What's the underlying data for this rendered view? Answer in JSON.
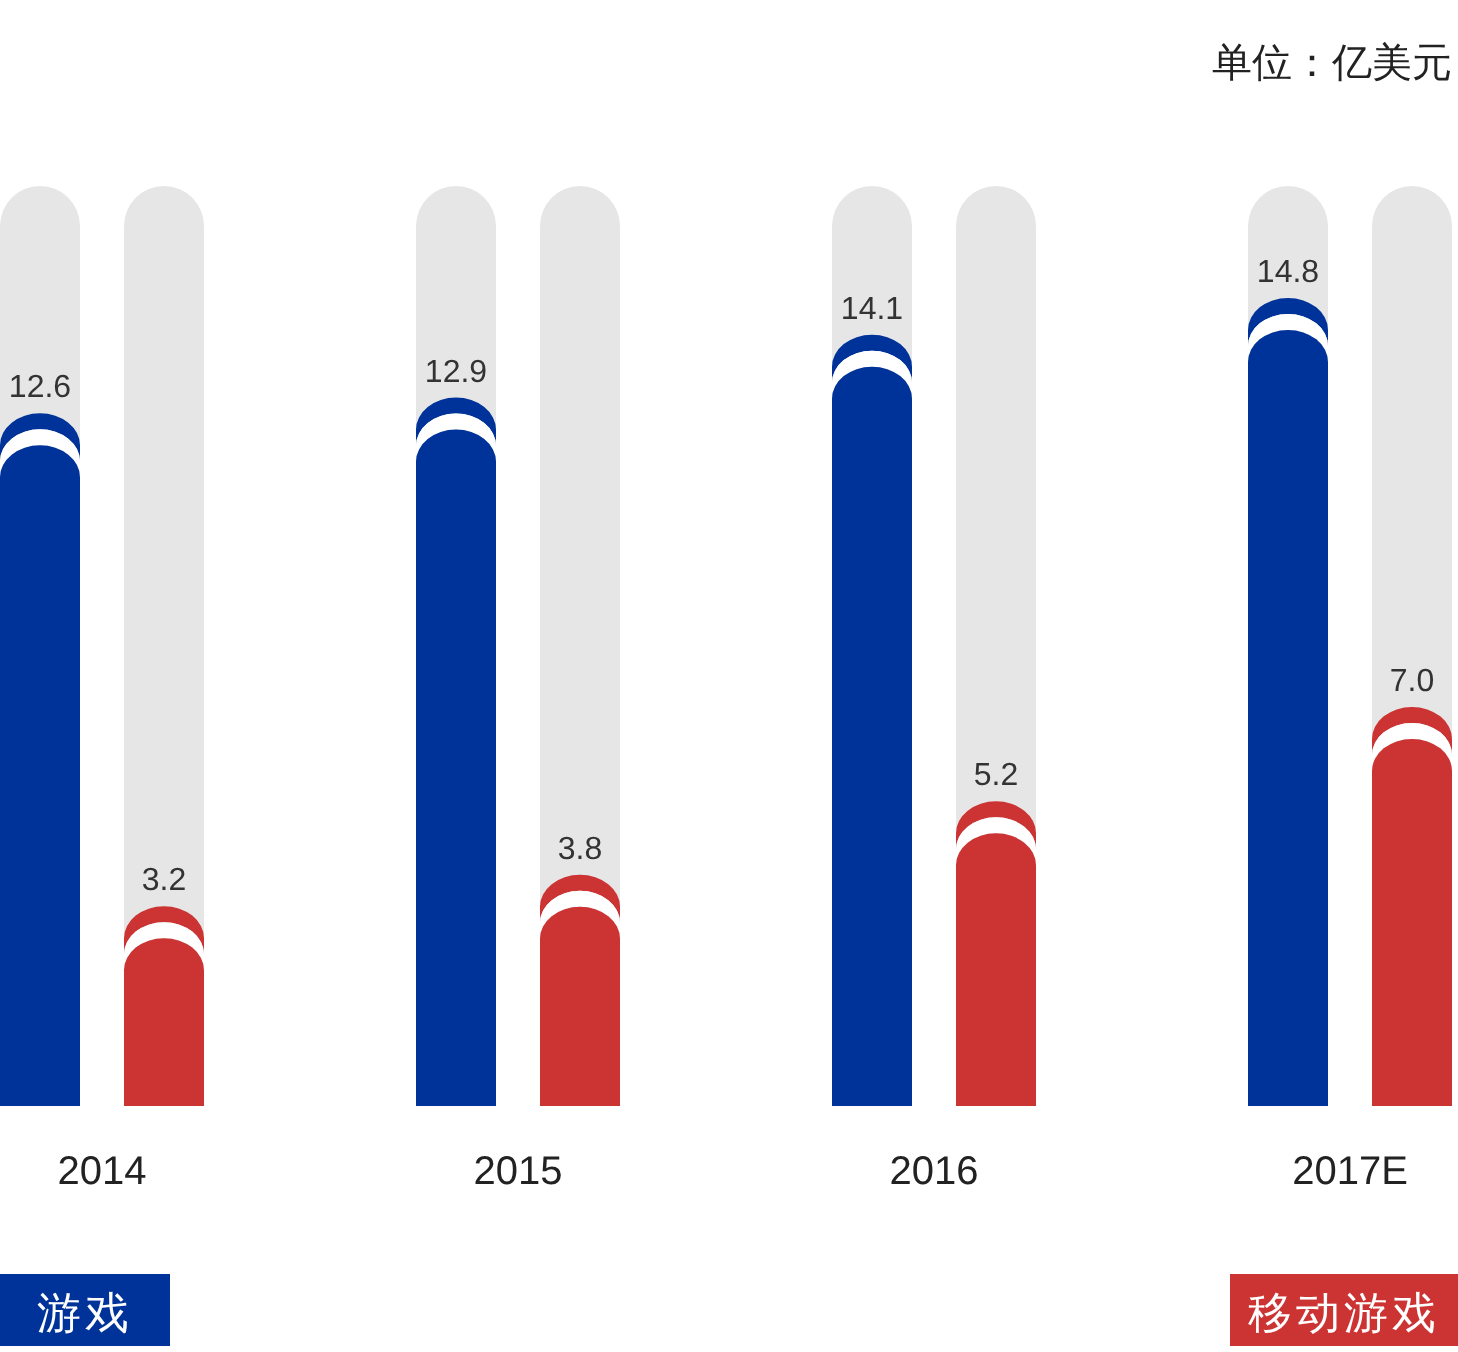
{
  "chart_data": {
    "type": "bar",
    "annotations": [
      "单位：亿美元"
    ],
    "categories": [
      "2014",
      "2015",
      "2016",
      "2017E"
    ],
    "series": [
      {
        "name": "游戏",
        "color": "#003399",
        "values": [
          12.6,
          12.9,
          14.1,
          14.8
        ],
        "value_labels": [
          "12.6",
          "12.9",
          "14.1",
          "14.8"
        ]
      },
      {
        "name": "移动游戏",
        "color": "#cc3333",
        "values": [
          3.2,
          3.8,
          5.2,
          7.0
        ],
        "value_labels": [
          "3.2",
          "3.8",
          "5.2",
          "7.0"
        ]
      }
    ],
    "legend": "bottom"
  }
}
